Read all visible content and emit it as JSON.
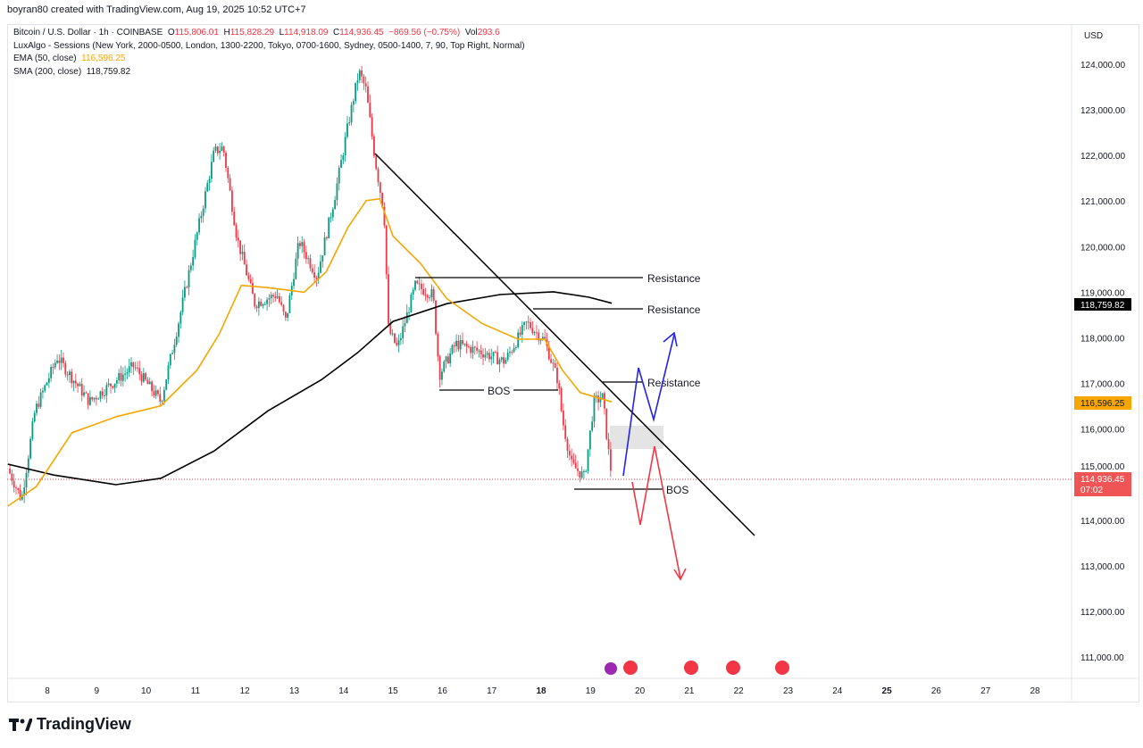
{
  "credit": "boyran80 created with TradingView.com, Aug 19, 2025 10:52 UTC+7",
  "legend": {
    "symbol": "Bitcoin / U.S. Dollar · 1h · COINBASE",
    "o_label": "O",
    "o": "115,806.01",
    "h_label": "H",
    "h": "115,828.29",
    "l_label": "L",
    "l": "114,918.09",
    "c_label": "C",
    "c": "114,936.45",
    "change": "−869.56 (−0.75%)",
    "vol_label": "Vol",
    "vol": "293.6",
    "sessions": "LuxAlgo - Sessions (New York, 2000-0500, London, 1300-2200, Tokyo, 0700-1600, Sydney, 0500-1400, 7, 90, Top Right, Normal)",
    "ema_label": "EMA (50, close)",
    "ema": "116,596.25",
    "sma_label": "SMA (200, close)",
    "sma": "118,759.82"
  },
  "currency": "USD",
  "logo": "TradingView",
  "colors": {
    "up": "#089981",
    "down": "#f23645",
    "ema": "#f7a600",
    "sma": "#000000",
    "blue_path": "#2424e6",
    "red_path": "#f23645"
  },
  "annotations": {
    "resistance": "Resistance",
    "bos": "BOS"
  },
  "badges": {
    "sma": "118,759.82",
    "ema": "116,596.25",
    "last": "114,936.45",
    "countdown": "07:02"
  },
  "chart_data": {
    "type": "candlestick",
    "interval": "1h",
    "ylim": [
      110500,
      124800
    ],
    "y_ticks": [
      111000,
      112000,
      113000,
      114000,
      115000,
      116000,
      117000,
      118000,
      119000,
      120000,
      121000,
      122000,
      123000,
      124000
    ],
    "y_tick_labels": [
      "111,000.00",
      "112,000.00",
      "113,000.00",
      "114,000.00",
      "115,000.00",
      "116,000.00",
      "117,000.00",
      "118,000.00",
      "119,000.00",
      "120,000.00",
      "121,000.00",
      "122,000.00",
      "123,000.00",
      "124,000.00"
    ],
    "x_ticks": [
      "8",
      "9",
      "10",
      "11",
      "12",
      "13",
      "14",
      "15",
      "16",
      "17",
      "18",
      "19",
      "20",
      "21",
      "22",
      "23",
      "24",
      "25",
      "26",
      "27",
      "28"
    ],
    "price_path": [
      [
        7.2,
        115130
      ],
      [
        7.48,
        114450
      ],
      [
        7.75,
        116400
      ],
      [
        8.2,
        117570
      ],
      [
        8.85,
        116600
      ],
      [
        9.75,
        117380
      ],
      [
        10.3,
        116600
      ],
      [
        10.66,
        118360
      ],
      [
        11.38,
        122080
      ],
      [
        11.56,
        122180
      ],
      [
        11.84,
        120200
      ],
      [
        12.2,
        118750
      ],
      [
        12.65,
        118950
      ],
      [
        12.83,
        118360
      ],
      [
        13.1,
        120120
      ],
      [
        13.46,
        119340
      ],
      [
        13.82,
        121100
      ],
      [
        14.09,
        122670
      ],
      [
        14.31,
        123840
      ],
      [
        14.45,
        123450
      ],
      [
        14.64,
        121890
      ],
      [
        14.82,
        120710
      ],
      [
        14.91,
        118170
      ],
      [
        15.09,
        117770
      ],
      [
        15.45,
        119140
      ],
      [
        15.81,
        118950
      ],
      [
        15.94,
        117190
      ],
      [
        16.27,
        117870
      ],
      [
        16.81,
        117680
      ],
      [
        17.26,
        117480
      ],
      [
        17.71,
        118330
      ],
      [
        18.07,
        117940
      ],
      [
        18.34,
        117060
      ],
      [
        18.43,
        116210
      ],
      [
        18.61,
        115230
      ],
      [
        18.88,
        114940
      ],
      [
        19.07,
        116600
      ],
      [
        19.25,
        116700
      ],
      [
        19.34,
        115720
      ],
      [
        19.43,
        114936
      ]
    ],
    "ema_50": [
      [
        7.2,
        114310
      ],
      [
        7.78,
        114740
      ],
      [
        8.5,
        115920
      ],
      [
        9.4,
        116270
      ],
      [
        10.3,
        116510
      ],
      [
        11.03,
        117290
      ],
      [
        11.48,
        118080
      ],
      [
        11.93,
        119150
      ],
      [
        12.48,
        119100
      ],
      [
        13.2,
        119000
      ],
      [
        13.65,
        119450
      ],
      [
        14.09,
        120430
      ],
      [
        14.46,
        121010
      ],
      [
        14.73,
        121050
      ],
      [
        15.0,
        120230
      ],
      [
        15.55,
        119640
      ],
      [
        16.09,
        118860
      ],
      [
        16.81,
        118310
      ],
      [
        17.53,
        117970
      ],
      [
        18.07,
        117970
      ],
      [
        18.43,
        117290
      ],
      [
        18.79,
        116800
      ],
      [
        19.43,
        116596
      ]
    ],
    "sma_200": [
      [
        7.2,
        115230
      ],
      [
        8.13,
        114990
      ],
      [
        9.39,
        114780
      ],
      [
        10.3,
        114920
      ],
      [
        11.38,
        115520
      ],
      [
        12.47,
        116400
      ],
      [
        13.55,
        117080
      ],
      [
        14.28,
        117670
      ],
      [
        15.0,
        118360
      ],
      [
        16.09,
        118750
      ],
      [
        17.17,
        118950
      ],
      [
        18.25,
        119010
      ],
      [
        18.97,
        118890
      ],
      [
        19.43,
        118760
      ]
    ],
    "last_price": 114936.45
  }
}
